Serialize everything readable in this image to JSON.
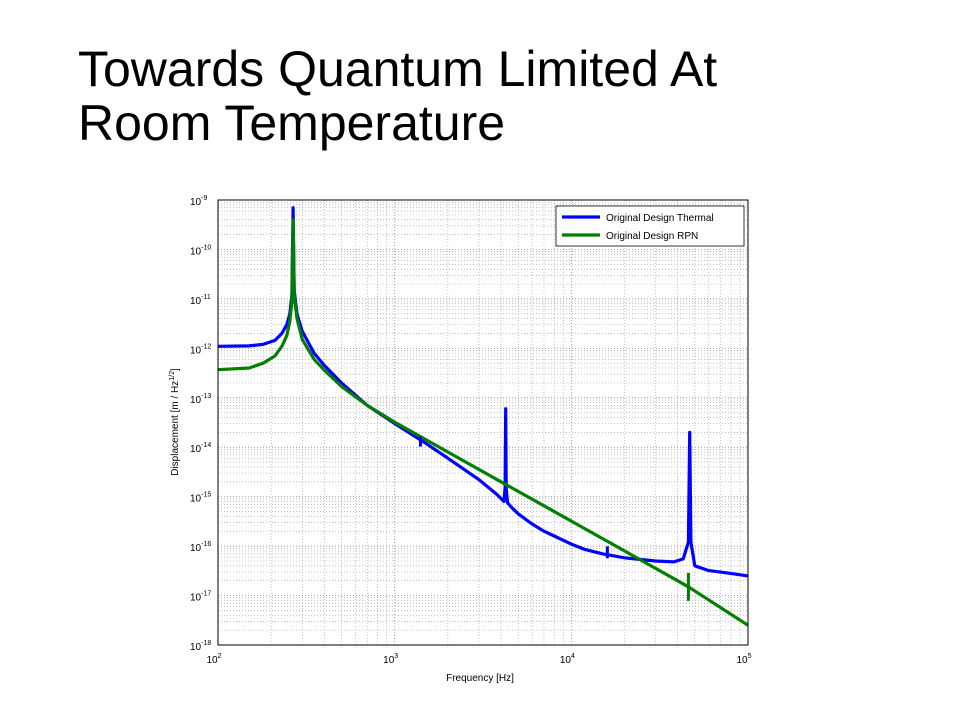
{
  "slide": {
    "title_line1": "Towards Quantum Limited At",
    "title_line2": "Room Temperature"
  },
  "chart_data": {
    "type": "line",
    "title": "",
    "xlabel": "Frequency [Hz]",
    "ylabel_main": "Displacement [m / Hz",
    "ylabel_sup": "1/2",
    "ylabel_end": "]",
    "xscale": "log",
    "yscale": "log",
    "xlim": [
      100,
      100000
    ],
    "ylim": [
      1e-18,
      1e-09
    ],
    "grid": true,
    "legend_position": "top-right",
    "x_ticks": [
      {
        "value": 100,
        "base": "10",
        "exp": "2"
      },
      {
        "value": 1000,
        "base": "10",
        "exp": "3"
      },
      {
        "value": 10000,
        "base": "10",
        "exp": "4"
      },
      {
        "value": 100000,
        "base": "10",
        "exp": "5"
      }
    ],
    "y_ticks": [
      {
        "value": 1e-09,
        "base": "10",
        "exp": "-9"
      },
      {
        "value": 1e-10,
        "base": "10",
        "exp": "-10"
      },
      {
        "value": 1e-11,
        "base": "10",
        "exp": "-11"
      },
      {
        "value": 1e-12,
        "base": "10",
        "exp": "-12"
      },
      {
        "value": 1e-13,
        "base": "10",
        "exp": "-13"
      },
      {
        "value": 1e-14,
        "base": "10",
        "exp": "-14"
      },
      {
        "value": 1e-15,
        "base": "10",
        "exp": "-15"
      },
      {
        "value": 1e-16,
        "base": "10",
        "exp": "-16"
      },
      {
        "value": 1e-17,
        "base": "10",
        "exp": "-17"
      },
      {
        "value": 1e-18,
        "base": "10",
        "exp": "-18"
      }
    ],
    "series": [
      {
        "name": "Original Design Thermal",
        "color": "#0000ff",
        "points": [
          [
            100,
            1.1e-12
          ],
          [
            150,
            1.12e-12
          ],
          [
            180,
            1.2e-12
          ],
          [
            210,
            1.45e-12
          ],
          [
            230,
            2e-12
          ],
          [
            245,
            3e-12
          ],
          [
            255,
            5e-12
          ],
          [
            262,
            1.2e-11
          ],
          [
            266,
            7e-10
          ],
          [
            270,
            1.5e-11
          ],
          [
            280,
            5e-12
          ],
          [
            300,
            2.2e-12
          ],
          [
            350,
            8e-13
          ],
          [
            400,
            4.5e-13
          ],
          [
            500,
            2e-13
          ],
          [
            700,
            7e-14
          ],
          [
            1000,
            3e-14
          ],
          [
            1500,
            1.2e-14
          ],
          [
            2000,
            6e-15
          ],
          [
            3000,
            2.2e-15
          ],
          [
            3800,
            1.1e-15
          ],
          [
            4150,
            8e-16
          ],
          [
            4220,
            1.5e-15
          ],
          [
            4250,
            6e-14
          ],
          [
            4280,
            1.5e-15
          ],
          [
            4350,
            7.5e-16
          ],
          [
            4600,
            6e-16
          ],
          [
            5000,
            4.5e-16
          ],
          [
            6000,
            2.8e-16
          ],
          [
            7000,
            2e-16
          ],
          [
            8000,
            1.6e-16
          ],
          [
            10000,
            1.1e-16
          ],
          [
            12000,
            8.5e-17
          ],
          [
            15000,
            7e-17
          ],
          [
            20000,
            5.8e-17
          ],
          [
            30000,
            5e-17
          ],
          [
            38000,
            4.8e-17
          ],
          [
            43000,
            5.5e-17
          ],
          [
            46000,
            1.2e-16
          ],
          [
            46800,
            2e-14
          ],
          [
            47500,
            1.2e-16
          ],
          [
            50000,
            4e-17
          ],
          [
            60000,
            3.2e-17
          ],
          [
            80000,
            2.8e-17
          ],
          [
            100000,
            2.5e-17
          ]
        ]
      },
      {
        "name": "Original Design RPN",
        "color": "#007f00",
        "points": [
          [
            100,
            3.7e-13
          ],
          [
            150,
            4e-13
          ],
          [
            180,
            5e-13
          ],
          [
            210,
            7e-13
          ],
          [
            230,
            1.1e-12
          ],
          [
            245,
            1.8e-12
          ],
          [
            255,
            3.5e-12
          ],
          [
            262,
            9e-12
          ],
          [
            266,
            4e-10
          ],
          [
            270,
            1.2e-11
          ],
          [
            280,
            4e-12
          ],
          [
            300,
            1.5e-12
          ],
          [
            350,
            6e-13
          ],
          [
            400,
            3.6e-13
          ],
          [
            500,
            1.7e-13
          ],
          [
            700,
            7e-14
          ],
          [
            1000,
            3.2e-14
          ],
          [
            2000,
            8e-15
          ],
          [
            4000,
            2e-15
          ],
          [
            10000,
            3.2e-16
          ],
          [
            20000,
            8e-17
          ],
          [
            46000,
            1.5e-17
          ],
          [
            100000,
            2.5e-18
          ]
        ]
      }
    ]
  }
}
